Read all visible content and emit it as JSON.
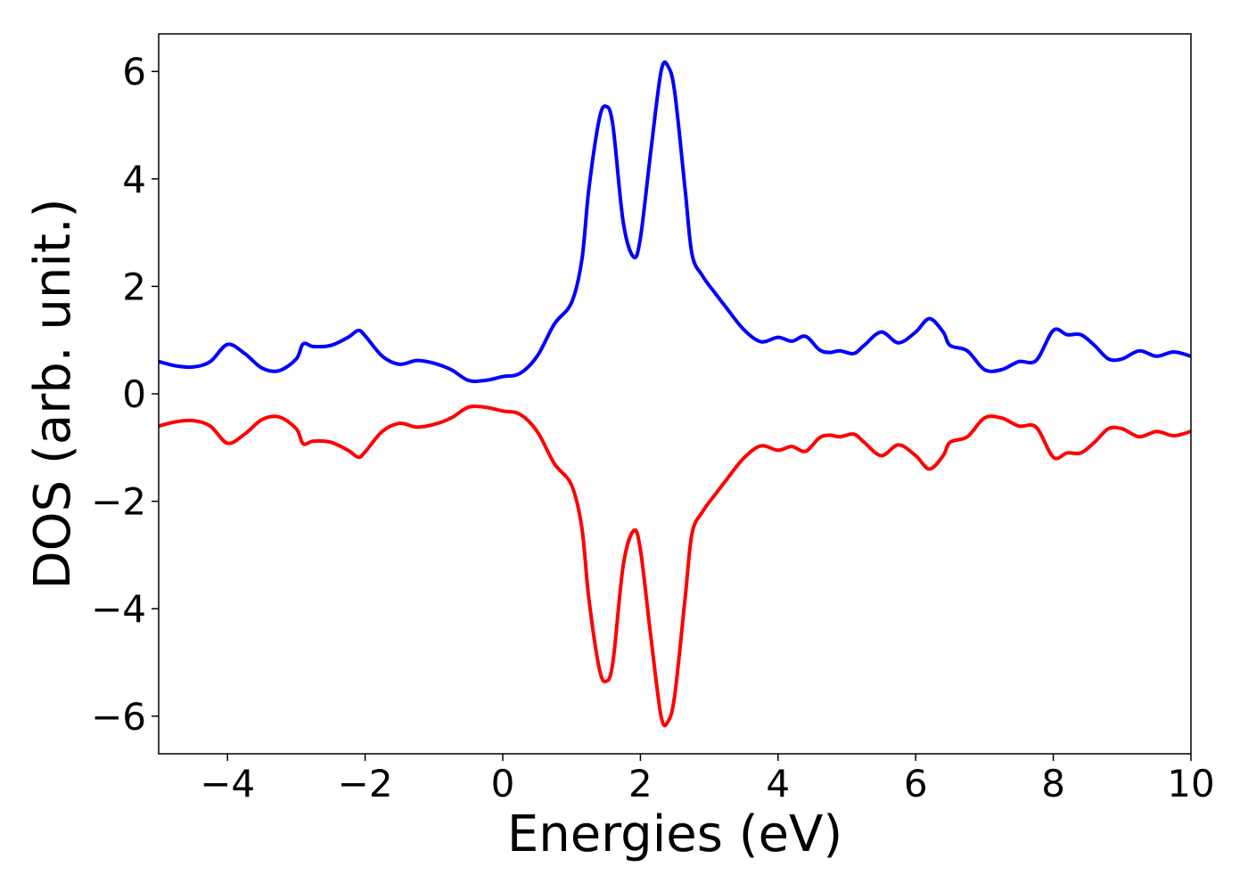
{
  "chart_data": {
    "type": "line",
    "xlabel": "Energies (eV)",
    "ylabel": "DOS (arb. unit.)",
    "xlim": [
      -5,
      10
    ],
    "ylim": [
      -6.7,
      6.7
    ],
    "xticks": [
      {
        "value": -4,
        "label": "−4"
      },
      {
        "value": -2,
        "label": "−2"
      },
      0,
      2,
      4,
      6,
      8,
      10
    ],
    "yticks": [
      {
        "value": -6,
        "label": "−6"
      },
      {
        "value": -4,
        "label": "−4"
      },
      {
        "value": -2,
        "label": "−2"
      },
      0,
      2,
      4,
      6
    ],
    "grid": false,
    "x": [
      -5,
      -4.75,
      -4.5,
      -4.25,
      -4,
      -3.75,
      -3.5,
      -3.25,
      -3,
      -2.9,
      -2.75,
      -2.5,
      -2.25,
      -2.1,
      -2,
      -1.75,
      -1.5,
      -1.25,
      -1,
      -0.75,
      -0.5,
      -0.25,
      0,
      0.25,
      0.5,
      0.75,
      1,
      1.15,
      1.25,
      1.4,
      1.5,
      1.6,
      1.75,
      1.9,
      2.0,
      2.15,
      2.3,
      2.4,
      2.5,
      2.65,
      2.75,
      2.9,
      3.1,
      3.25,
      3.5,
      3.75,
      4,
      4.2,
      4.4,
      4.6,
      4.75,
      4.9,
      5.1,
      5.25,
      5.5,
      5.75,
      6.0,
      6.2,
      6.4,
      6.5,
      6.75,
      7.0,
      7.25,
      7.5,
      7.75,
      8.0,
      8.2,
      8.4,
      8.6,
      8.8,
      9.0,
      9.25,
      9.5,
      9.75,
      10
    ],
    "series": [
      {
        "color": "#0000ff",
        "values": [
          0.6,
          0.52,
          0.5,
          0.6,
          0.92,
          0.75,
          0.48,
          0.43,
          0.65,
          0.93,
          0.88,
          0.9,
          1.05,
          1.18,
          1.08,
          0.7,
          0.55,
          0.62,
          0.57,
          0.45,
          0.25,
          0.25,
          0.32,
          0.38,
          0.7,
          1.3,
          1.7,
          2.5,
          3.8,
          5.1,
          5.35,
          5.0,
          3.2,
          2.55,
          2.9,
          4.5,
          6.0,
          6.1,
          5.6,
          3.8,
          2.6,
          2.2,
          1.85,
          1.6,
          1.2,
          0.97,
          1.05,
          0.98,
          1.07,
          0.82,
          0.77,
          0.8,
          0.75,
          0.9,
          1.15,
          0.95,
          1.15,
          1.4,
          1.15,
          0.9,
          0.8,
          0.45,
          0.45,
          0.6,
          0.62,
          1.18,
          1.1,
          1.1,
          0.9,
          0.65,
          0.65,
          0.8,
          0.7,
          0.78,
          0.7
        ]
      },
      {
        "color": "#ff0000",
        "values": [
          -0.6,
          -0.52,
          -0.5,
          -0.6,
          -0.92,
          -0.75,
          -0.48,
          -0.43,
          -0.65,
          -0.93,
          -0.88,
          -0.9,
          -1.05,
          -1.18,
          -1.08,
          -0.7,
          -0.55,
          -0.62,
          -0.57,
          -0.45,
          -0.25,
          -0.25,
          -0.32,
          -0.38,
          -0.7,
          -1.3,
          -1.7,
          -2.5,
          -3.8,
          -5.1,
          -5.35,
          -5.0,
          -3.2,
          -2.55,
          -2.9,
          -4.5,
          -6.0,
          -6.1,
          -5.6,
          -3.8,
          -2.6,
          -2.2,
          -1.85,
          -1.6,
          -1.2,
          -0.97,
          -1.05,
          -0.98,
          -1.07,
          -0.82,
          -0.77,
          -0.8,
          -0.75,
          -0.9,
          -1.15,
          -0.95,
          -1.15,
          -1.4,
          -1.15,
          -0.9,
          -0.8,
          -0.45,
          -0.45,
          -0.6,
          -0.62,
          -1.18,
          -1.1,
          -1.1,
          -0.9,
          -0.65,
          -0.65,
          -0.8,
          -0.7,
          -0.78,
          -0.7
        ]
      }
    ]
  }
}
